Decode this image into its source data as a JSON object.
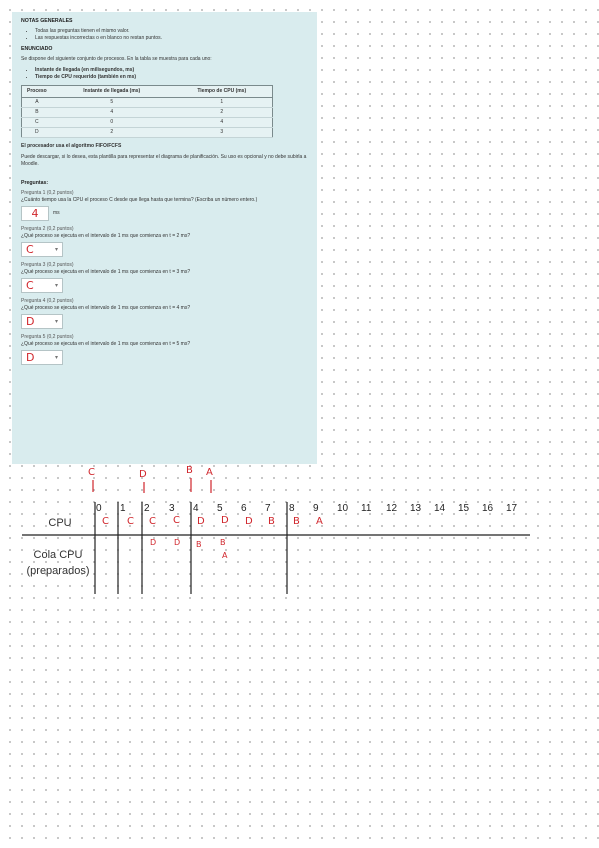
{
  "notes": {
    "title": "NOTAS GENERALES",
    "items": [
      "Todas las preguntas tienen el mismo valor.",
      "Las respuestas incorrectas o en blanco no restan puntos."
    ]
  },
  "statement": {
    "title": "ENUNCIADO",
    "intro": "Se dispone del siguiente conjunto de procesos. En la tabla se muestra para cada uno:",
    "items": [
      "Instante de llegada (en milisegundos, ms)",
      "Tiempo de CPU requerido (también en ms)"
    ],
    "table": {
      "headers": [
        "Proceso",
        "Instante de llegada (ms)",
        "Tiempo de CPU (ms)"
      ],
      "rows": [
        [
          "A",
          "5",
          "1"
        ],
        [
          "B",
          "4",
          "2"
        ],
        [
          "C",
          "0",
          "4"
        ],
        [
          "D",
          "2",
          "3"
        ]
      ]
    },
    "algorithm": "El procesador usa el algoritmo FIFO/FCFS",
    "template_note": "Puede descargar, si lo desea, esta plantilla para representar el diagrama de planificación. Su uso es opcional y no debe subirla a Moodle."
  },
  "questions_title": "Preguntas:",
  "questions": [
    {
      "label": "Pregunta 1 (0,2 puntos)",
      "text": "¿Cuánto tiempo usa la CPU el proceso C desde que llega hasta que termina? (Escriba un número entero.)",
      "answer": "4",
      "unit": "ms"
    },
    {
      "label": "Pregunta 2 (0,2 puntos)",
      "text": "¿Qué proceso se ejecuta en el intervalo de 1 ms que comienza en t = 2 ms?",
      "answer": "C"
    },
    {
      "label": "Pregunta 3 (0,2 puntos)",
      "text": "¿Qué proceso se ejecuta en el intervalo de 1 ms que comienza en t = 3 ms?",
      "answer": "C"
    },
    {
      "label": "Pregunta 4 (0,2 puntos)",
      "text": "¿Qué proceso se ejecuta en el intervalo de 1 ms que comienza en t = 4 ms?",
      "answer": "D"
    },
    {
      "label": "Pregunta 5 (0,2 puntos)",
      "text": "¿Qué proceso se ejecuta en el intervalo de 1 ms que comienza en t = 5 ms?",
      "answer": "D"
    }
  ],
  "diagram": {
    "cpu_label": "CPU",
    "queue_label_1": "Cola CPU",
    "queue_label_2": "(preparados)",
    "ticks": [
      "0",
      "1",
      "2",
      "3",
      "4",
      "5",
      "6",
      "7",
      "8",
      "9",
      "10",
      "11",
      "12",
      "13",
      "14",
      "15",
      "16",
      "17"
    ],
    "arrivals": [
      "C",
      "D",
      "B",
      "A"
    ],
    "cpu_marks": [
      "C",
      "C",
      "C",
      "C",
      "D",
      "D",
      "D",
      "B",
      "B",
      "A"
    ],
    "queue_marks": [
      "D",
      "D",
      "B",
      "B",
      "A"
    ]
  }
}
